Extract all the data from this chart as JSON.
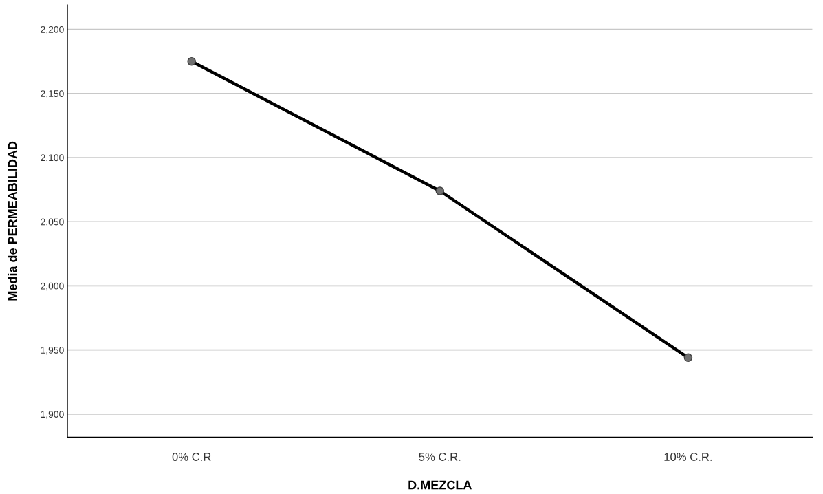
{
  "chart_data": {
    "type": "line",
    "xlabel": "D.MEZCLA",
    "ylabel": "Media de PERMEABILIDAD",
    "categories": [
      "0% C.R",
      "5% C.R.",
      "10% C.R."
    ],
    "series": [
      {
        "color": "#000000",
        "values": [
          2175,
          2074,
          1944
        ]
      }
    ],
    "marker": "circle",
    "line_style": "solid",
    "grid": "y",
    "ylim": [
      1882,
      2219
    ],
    "yticks": [
      {
        "value": 1900,
        "label": "1,900"
      },
      {
        "value": 1950,
        "label": "1,950"
      },
      {
        "value": 2000,
        "label": "2,000"
      },
      {
        "value": 2050,
        "label": "2,050"
      },
      {
        "value": 2100,
        "label": "2,100"
      },
      {
        "value": 2150,
        "label": "2,150"
      },
      {
        "value": 2200,
        "label": "2,200"
      }
    ]
  }
}
